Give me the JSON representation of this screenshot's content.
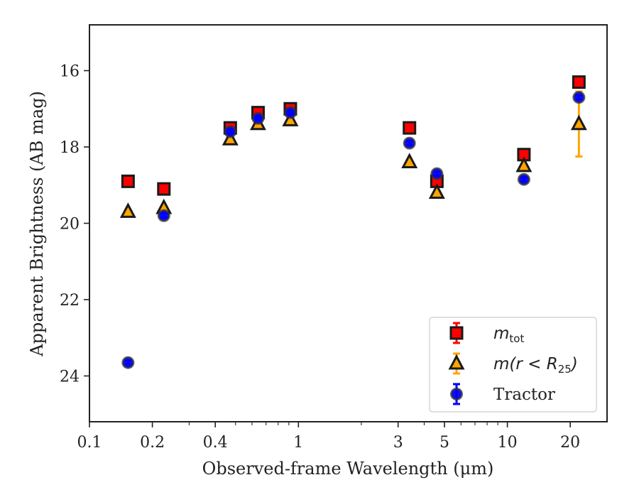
{
  "chart_data": {
    "type": "scatter",
    "xlabel": "Observed-frame Wavelength (μm)",
    "ylabel": "Apparent Brightness (AB mag)",
    "xscale": "log",
    "xlim": [
      0.1,
      30
    ],
    "ylim": [
      25.2,
      14.8
    ],
    "y_inverted": true,
    "xticks": [
      {
        "value": 0.1,
        "label": "0.1"
      },
      {
        "value": 0.2,
        "label": "0.2"
      },
      {
        "value": 0.4,
        "label": "0.4"
      },
      {
        "value": 1,
        "label": "1"
      },
      {
        "value": 3,
        "label": "3"
      },
      {
        "value": 5,
        "label": "5"
      },
      {
        "value": 10,
        "label": "10"
      },
      {
        "value": 20,
        "label": "20"
      }
    ],
    "yticks": [
      {
        "value": 16,
        "label": "16"
      },
      {
        "value": 18,
        "label": "18"
      },
      {
        "value": 20,
        "label": "20"
      },
      {
        "value": 22,
        "label": "22"
      },
      {
        "value": 24,
        "label": "24"
      }
    ],
    "legend_position": "lower-right",
    "series": [
      {
        "name": "m_tot",
        "legend_main": "m",
        "legend_sub": "tot",
        "marker": "square",
        "color": "#ff0000",
        "errcolor": "#ff0000",
        "points": [
          {
            "x": 0.153,
            "y": 18.9
          },
          {
            "x": 0.227,
            "y": 19.1
          },
          {
            "x": 0.472,
            "y": 17.5
          },
          {
            "x": 0.641,
            "y": 17.1
          },
          {
            "x": 0.915,
            "y": 17.0
          },
          {
            "x": 3.4,
            "y": 17.5
          },
          {
            "x": 4.6,
            "y": 18.9
          },
          {
            "x": 12.0,
            "y": 18.2
          },
          {
            "x": 22.0,
            "y": 16.3
          }
        ]
      },
      {
        "name": "m(r < R_25)",
        "legend_main": "m(r < R",
        "legend_sub": "25",
        "legend_tail": ")",
        "marker": "triangle",
        "color": "#ffa500",
        "errcolor": "#ffa500",
        "points": [
          {
            "x": 0.153,
            "y": 19.7
          },
          {
            "x": 0.227,
            "y": 19.6
          },
          {
            "x": 0.472,
            "y": 17.8
          },
          {
            "x": 0.641,
            "y": 17.4
          },
          {
            "x": 0.915,
            "y": 17.3
          },
          {
            "x": 3.4,
            "y": 18.4
          },
          {
            "x": 4.6,
            "y": 19.2
          },
          {
            "x": 12.0,
            "y": 18.5
          },
          {
            "x": 22.0,
            "y": 17.4,
            "yerr": 0.85
          }
        ]
      },
      {
        "name": "Tractor",
        "legend_main": "Tractor",
        "marker": "circle",
        "color": "#0000ff",
        "errcolor": "#0000ff",
        "points": [
          {
            "x": 0.153,
            "y": 23.65
          },
          {
            "x": 0.227,
            "y": 19.8
          },
          {
            "x": 0.472,
            "y": 17.6
          },
          {
            "x": 0.641,
            "y": 17.25
          },
          {
            "x": 0.915,
            "y": 17.1
          },
          {
            "x": 3.4,
            "y": 17.9
          },
          {
            "x": 4.6,
            "y": 18.7
          },
          {
            "x": 12.0,
            "y": 18.85
          },
          {
            "x": 22.0,
            "y": 16.7
          }
        ]
      }
    ]
  }
}
